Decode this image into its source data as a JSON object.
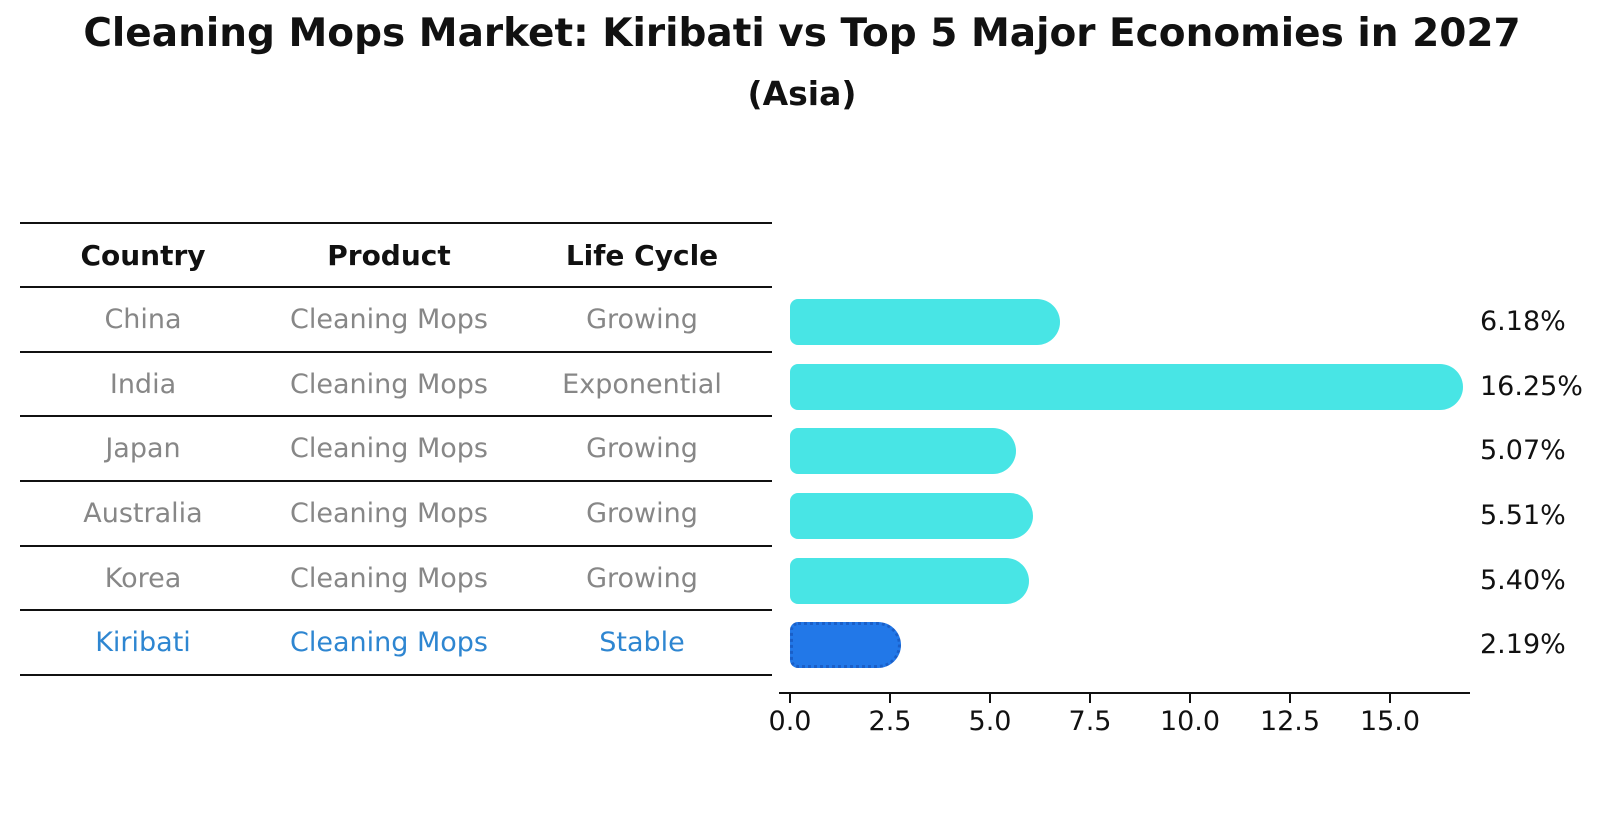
{
  "title": "Cleaning Mops Market: Kiribati vs Top 5 Major Economies in 2027",
  "subtitle": "(Asia)",
  "table": {
    "headers": [
      "Country",
      "Product",
      "Life Cycle"
    ],
    "rows": [
      {
        "country": "China",
        "product": "Cleaning Mops",
        "life_cycle": "Growing",
        "highlight": false
      },
      {
        "country": "India",
        "product": "Cleaning Mops",
        "life_cycle": "Exponential",
        "highlight": false
      },
      {
        "country": "Japan",
        "product": "Cleaning Mops",
        "life_cycle": "Growing",
        "highlight": false
      },
      {
        "country": "Australia",
        "product": "Cleaning Mops",
        "life_cycle": "Growing",
        "highlight": false
      },
      {
        "country": "Korea",
        "product": "Cleaning Mops",
        "life_cycle": "Growing",
        "highlight": false
      },
      {
        "country": "Kiribati",
        "product": "Cleaning Mops",
        "life_cycle": "Stable",
        "highlight": true
      }
    ]
  },
  "chart_data": {
    "type": "bar",
    "orientation": "horizontal",
    "title": "Cleaning Mops Market: Kiribati vs Top 5 Major Economies in 2027",
    "subtitle": "(Asia)",
    "categories": [
      "China",
      "India",
      "Japan",
      "Australia",
      "Korea",
      "Kiribati"
    ],
    "values": [
      6.18,
      16.25,
      5.07,
      5.51,
      5.4,
      2.19
    ],
    "value_labels": [
      "6.18%",
      "16.25%",
      "5.07%",
      "5.51%",
      "5.40%",
      "2.19%"
    ],
    "highlight_index": 5,
    "xlim": [
      0,
      17.1
    ],
    "x_ticks": [
      {
        "value": 0,
        "label": "0.0"
      },
      {
        "value": 2.5,
        "label": "2.5"
      },
      {
        "value": 5,
        "label": "5.0"
      },
      {
        "value": 7.5,
        "label": "7.5"
      },
      {
        "value": 10,
        "label": "10.0"
      },
      {
        "value": 12.5,
        "label": "12.5"
      },
      {
        "value": 15,
        "label": "15.0"
      }
    ],
    "grid": false,
    "legend": false
  },
  "colors": {
    "background": "#ffffff",
    "bar_default": "#48e5e5",
    "bar_highlight": "#2278e8",
    "bar_highlight_border": "#1a5fc8",
    "row_text": "#878787",
    "highlight_text": "#2e86d1",
    "header_text": "#111111",
    "axis": "#111111"
  }
}
